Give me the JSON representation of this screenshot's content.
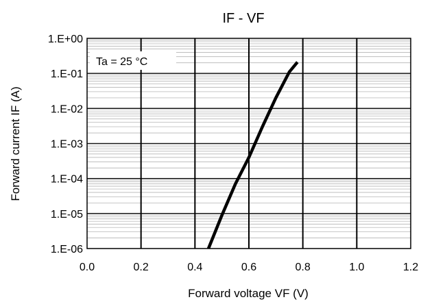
{
  "chart_data": {
    "type": "line",
    "title": "IF - VF",
    "xlabel": "Forward voltage VF (V)",
    "ylabel": "Forward current IF (A)",
    "xlim": [
      0.0,
      1.2
    ],
    "ylim": [
      1e-06,
      1
    ],
    "yscale": "log",
    "x_ticks": [
      "0.0",
      "0.2",
      "0.4",
      "0.6",
      "0.8",
      "1.0",
      "1.2"
    ],
    "y_ticks": [
      "1.E+00",
      "1.E-01",
      "1.E-02",
      "1.E-03",
      "1.E-04",
      "1.E-05",
      "1.E-06"
    ],
    "grid": true,
    "annotation": "Ta = 25 °C",
    "series": [
      {
        "x": [
          0.45,
          0.5,
          0.55,
          0.6,
          0.65,
          0.7,
          0.75,
          0.78
        ],
        "y": [
          1e-06,
          9e-06,
          7e-05,
          0.0004,
          0.003,
          0.02,
          0.11,
          0.21
        ]
      }
    ]
  }
}
